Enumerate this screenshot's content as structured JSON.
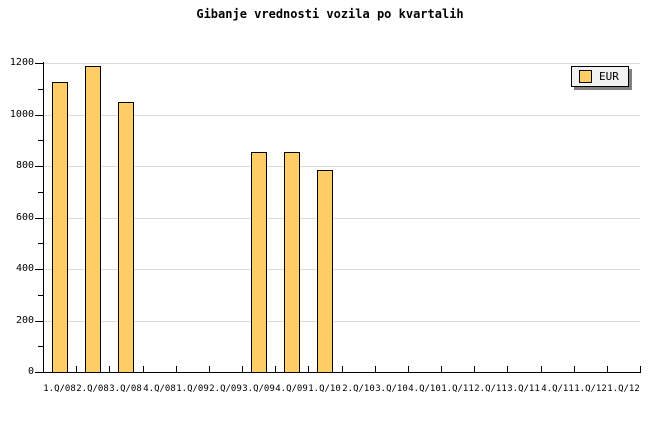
{
  "title": "Gibanje vrednosti vozila po kvartalih",
  "legend": {
    "label": "EUR",
    "swatch_color": "#FFCC66"
  },
  "chart_data": {
    "type": "bar",
    "title": "Gibanje vrednosti vozila po kvartalih",
    "xlabel": "",
    "ylabel": "",
    "categories": [
      "1.Q/08",
      "2.Q/08",
      "3.Q/08",
      "4.Q/08",
      "1.Q/09",
      "2.Q/09",
      "3.Q/09",
      "4.Q/09",
      "1.Q/10",
      "2.Q/10",
      "3.Q/10",
      "4.Q/10",
      "1.Q/11",
      "2.Q/11",
      "3.Q/11",
      "4.Q/11",
      "1.Q/12",
      "1.Q/12"
    ],
    "series": [
      {
        "name": "EUR",
        "values": [
          1125,
          1190,
          1050,
          null,
          null,
          null,
          855,
          855,
          785,
          null,
          null,
          null,
          null,
          null,
          null,
          null,
          null,
          null
        ]
      }
    ],
    "ylim": [
      0,
      1200
    ],
    "ytick_step": 200,
    "yminor_step": 100,
    "ytick_labels": [
      "0",
      "200",
      "400",
      "600",
      "800",
      "1000",
      "1200"
    ],
    "grid": "horizontal-major",
    "legend_position": "top-right",
    "bar_color": "#FFCC66",
    "bar_border_color": "#000000"
  },
  "colors": {
    "background": "#FFFFFF",
    "gridline": "#DCDCDC",
    "axis": "#000000",
    "bar_fill": "#FFCC66",
    "bar_border": "#000000",
    "legend_background": "#F2F2F2",
    "legend_shadow": "#808080",
    "text": "#000000"
  }
}
